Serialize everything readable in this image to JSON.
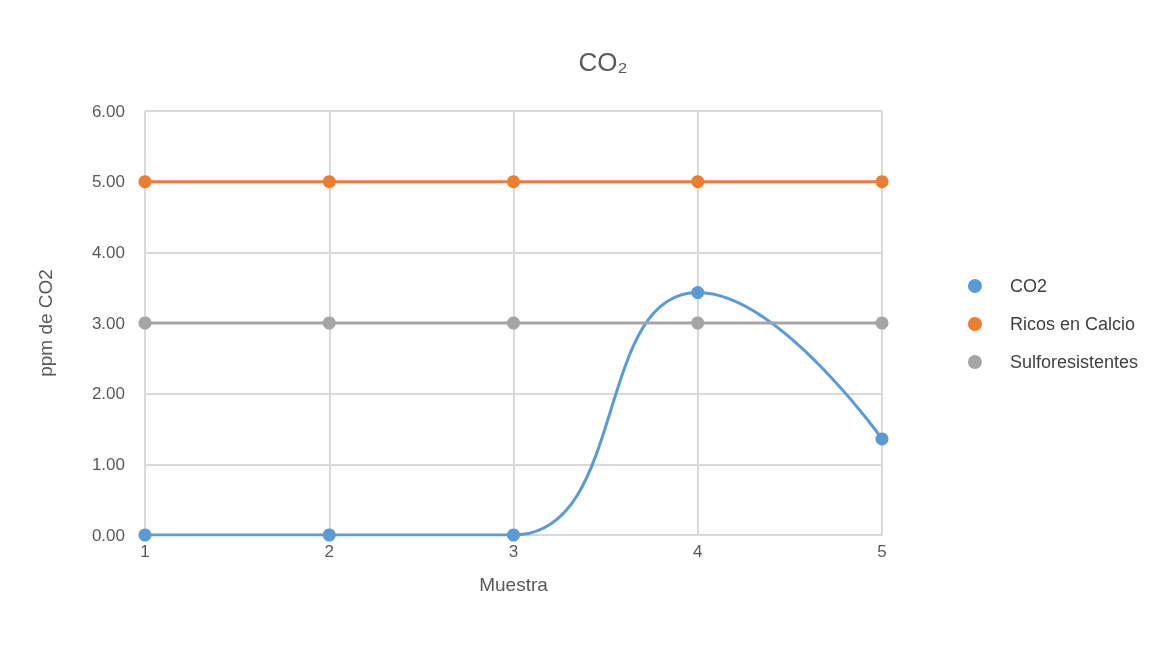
{
  "chart_data": {
    "type": "line",
    "title": "CO₂",
    "xlabel": "Muestra",
    "ylabel": "ppm de CO2",
    "categories": [
      "1",
      "2",
      "3",
      "4",
      "5"
    ],
    "series": [
      {
        "name": "CO2",
        "color": "#5b9bd5",
        "values": [
          0,
          0,
          0,
          3.43,
          1.36
        ]
      },
      {
        "name": "Ricos en Calcio",
        "color": "#ed7d31",
        "values": [
          5,
          5,
          5,
          5,
          5
        ]
      },
      {
        "name": "Sulforesistentes",
        "color": "#a5a5a5",
        "values": [
          3,
          3,
          3,
          3,
          3
        ]
      }
    ],
    "ylim": [
      0,
      6
    ],
    "yticks": [
      {
        "value": 0,
        "label": "0.00"
      },
      {
        "value": 1,
        "label": "1.00"
      },
      {
        "value": 2,
        "label": "2.00"
      },
      {
        "value": 3,
        "label": "3.00"
      },
      {
        "value": 4,
        "label": "4.00"
      },
      {
        "value": 5,
        "label": "5.00"
      },
      {
        "value": 6,
        "label": "6.00"
      }
    ],
    "grid": true,
    "legend": "right",
    "marker": "circle"
  }
}
